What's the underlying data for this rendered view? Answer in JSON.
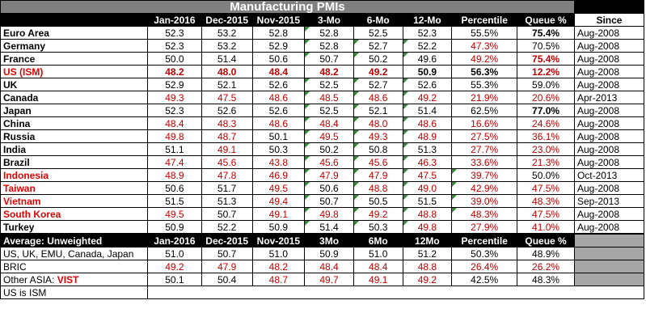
{
  "title": "Manufacturing PMIs",
  "headers": [
    "Jan-2016",
    "Dec-2015",
    "Nov-2015",
    "3-Mo",
    "6-Mo",
    "12-Mo",
    "Percentile",
    "Queue %"
  ],
  "since_header": "Since",
  "rows": [
    {
      "name": "Euro Area",
      "values": [
        "52.3",
        "53.2",
        "52.8",
        "52.8",
        "52.5",
        "52.3",
        "55.5%",
        "75.4%"
      ],
      "since": "Aug-2008"
    },
    {
      "name": " Germany",
      "values": [
        "52.3",
        "53.2",
        "52.9",
        "52.8",
        "52.7",
        "52.2",
        "47.3%",
        "70.5%"
      ],
      "since": "Aug-2008"
    },
    {
      "name": " France",
      "values": [
        "50.0",
        "51.4",
        "50.6",
        "50.7",
        "50.2",
        "49.6",
        "49.2%",
        "75.4%"
      ],
      "since": "Aug-2008"
    },
    {
      "name": "US (ISM)",
      "values": [
        "48.2",
        "48.0",
        "48.4",
        "48.2",
        "49.2",
        "50.9",
        "56.3%",
        "12.2%"
      ],
      "since": "Aug-2008"
    },
    {
      "name": "UK",
      "values": [
        "52.9",
        "52.1",
        "52.6",
        "52.5",
        "52.7",
        "52.6",
        "55.3%",
        "59.0%"
      ],
      "since": "Aug-2008"
    },
    {
      "name": "Canada",
      "values": [
        "49.3",
        "47.5",
        "48.6",
        "48.5",
        "48.6",
        "49.2",
        "21.9%",
        "20.6%"
      ],
      "since": "Apr-2013"
    },
    {
      "name": "Japan",
      "values": [
        "52.3",
        "52.6",
        "52.6",
        "52.5",
        "52.1",
        "51.4",
        "62.5%",
        "77.0%"
      ],
      "since": "Aug-2008"
    },
    {
      "name": "China",
      "values": [
        "48.4",
        "48.3",
        "48.6",
        "48.4",
        "48.0",
        "48.6",
        "16.6%",
        "24.6%"
      ],
      "since": "Aug-2008"
    },
    {
      "name": "Russia",
      "values": [
        "49.8",
        "48.7",
        "50.1",
        "49.5",
        "49.3",
        "48.9",
        "27.5%",
        "36.1%"
      ],
      "since": "Aug-2008"
    },
    {
      "name": "India",
      "values": [
        "51.1",
        "49.1",
        "50.3",
        "50.2",
        "50.8",
        "51.3",
        "27.7%",
        "23.0%"
      ],
      "since": "Aug-2008"
    },
    {
      "name": "Brazil",
      "values": [
        "47.4",
        "45.6",
        "43.8",
        "45.6",
        "45.6",
        "46.3",
        "33.6%",
        "21.3%"
      ],
      "since": "Aug-2008"
    },
    {
      "name": "Indonesia",
      "values": [
        "48.9",
        "47.8",
        "46.9",
        "47.9",
        "47.9",
        "47.5",
        "39.7%",
        "50.0%"
      ],
      "since": "Oct-2013"
    },
    {
      "name": "Taiwan",
      "values": [
        "50.6",
        "51.7",
        "49.5",
        "50.6",
        "48.8",
        "49.0",
        "42.9%",
        "47.5%"
      ],
      "since": "Aug-2008"
    },
    {
      "name": "Vietnam",
      "values": [
        "51.5",
        "51.3",
        "49.4",
        "50.7",
        "50.5",
        "51.5",
        "39.0%",
        "48.3%"
      ],
      "since": "Sep-2013"
    },
    {
      "name": "South Korea",
      "values": [
        "49.5",
        "50.7",
        "49.1",
        "49.8",
        "49.2",
        "48.8",
        "48.3%",
        "47.5%"
      ],
      "since": "Aug-2008"
    },
    {
      "name": "Turkey",
      "values": [
        "50.9",
        "52.2",
        "50.9",
        "51.4",
        "50.3",
        "49.8",
        "27.9%",
        "41.0%"
      ],
      "since": "Aug-2008"
    }
  ],
  "avg_header": {
    "label": "Average: Unweighted",
    "cols": [
      "Jan-2016",
      "Dec-2015",
      "Nov-2015",
      "3Mo",
      "6Mo",
      "12Mo",
      "Percentile",
      "Queue %"
    ]
  },
  "avg_rows": [
    {
      "name": "US, UK, EMU, Canada, Japan",
      "values": [
        "51.0",
        "50.7",
        "51.0",
        "50.9",
        "51.0",
        "51.2",
        "50.3%",
        "48.9%"
      ]
    },
    {
      "name": "BRIC",
      "values": [
        "49.2",
        "47.9",
        "48.2",
        "48.4",
        "48.4",
        "48.8",
        "26.4%",
        "26.2%"
      ]
    },
    {
      "name": "Other ASIA: ",
      "name_red": "VIST",
      "values": [
        "50.1",
        "50.4",
        "48.7",
        "49.7",
        "49.1",
        "49.2",
        "42.5%",
        "48.3%"
      ]
    }
  ],
  "footnote": "US is ISM",
  "colors": {
    "header_bg": "#000000",
    "title_bg": "#808080",
    "negative": "#c00000",
    "highlight_name": "#e00000",
    "marker": "#2e8b3a",
    "gray_block": "#a6a6a6"
  }
}
